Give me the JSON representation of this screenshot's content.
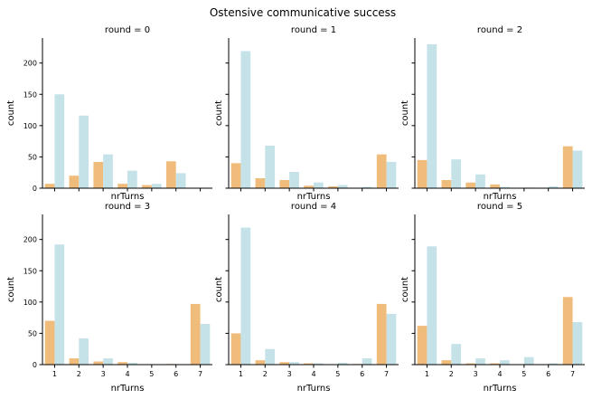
{
  "figure_title": "Ostensive communicative success",
  "colors": {
    "series_a": "#f0bc7c",
    "series_b": "#c5e2e8",
    "axis": "#000000"
  },
  "chart_data": [
    {
      "type": "bar",
      "title": "round = 0",
      "xlabel": "nrTurns",
      "ylabel": "count",
      "categories": [
        "1",
        "2",
        "3",
        "4",
        "5",
        "6",
        "7"
      ],
      "ylim": [
        0,
        240
      ],
      "yticks": [
        0,
        50,
        100,
        150,
        200
      ],
      "grid": false,
      "series": [
        {
          "values": [
            7,
            20,
            42,
            7,
            5,
            43,
            0
          ]
        },
        {
          "values": [
            150,
            116,
            54,
            28,
            7,
            24,
            0
          ]
        }
      ]
    },
    {
      "type": "bar",
      "title": "round = 1",
      "xlabel": "nrTurns",
      "ylabel": "count",
      "categories": [
        "1",
        "2",
        "3",
        "4",
        "5",
        "6",
        "7"
      ],
      "ylim": [
        0,
        240
      ],
      "yticks": [
        0,
        50,
        100,
        150,
        200
      ],
      "grid": false,
      "series": [
        {
          "values": [
            40,
            16,
            13,
            4,
            3,
            0,
            54
          ]
        },
        {
          "values": [
            219,
            68,
            26,
            9,
            5,
            2,
            42
          ]
        }
      ]
    },
    {
      "type": "bar",
      "title": "round = 2",
      "xlabel": "nrTurns",
      "ylabel": "count",
      "categories": [
        "1",
        "2",
        "3",
        "4",
        "5",
        "6",
        "7"
      ],
      "ylim": [
        0,
        240
      ],
      "yticks": [
        0,
        50,
        100,
        150,
        200
      ],
      "grid": false,
      "series": [
        {
          "values": [
            45,
            13,
            9,
            6,
            0,
            0,
            67
          ]
        },
        {
          "values": [
            230,
            46,
            22,
            2,
            1,
            3,
            60
          ]
        }
      ]
    },
    {
      "type": "bar",
      "title": "round = 3",
      "xlabel": "nrTurns",
      "ylabel": "count",
      "categories": [
        "1",
        "2",
        "3",
        "4",
        "5",
        "6",
        "7"
      ],
      "ylim": [
        0,
        240
      ],
      "yticks": [
        0,
        50,
        100,
        150,
        200
      ],
      "grid": false,
      "series": [
        {
          "values": [
            70,
            10,
            5,
            4,
            0,
            1,
            97
          ]
        },
        {
          "values": [
            192,
            42,
            10,
            3,
            0,
            0,
            65
          ]
        }
      ]
    },
    {
      "type": "bar",
      "title": "round = 4",
      "xlabel": "nrTurns",
      "ylabel": "count",
      "categories": [
        "1",
        "2",
        "3",
        "4",
        "5",
        "6",
        "7"
      ],
      "ylim": [
        0,
        240
      ],
      "yticks": [
        0,
        50,
        100,
        150,
        200
      ],
      "grid": false,
      "series": [
        {
          "values": [
            50,
            7,
            4,
            2,
            0,
            1,
            97
          ]
        },
        {
          "values": [
            219,
            25,
            4,
            2,
            3,
            10,
            81
          ]
        }
      ]
    },
    {
      "type": "bar",
      "title": "round = 5",
      "xlabel": "nrTurns",
      "ylabel": "count",
      "categories": [
        "1",
        "2",
        "3",
        "4",
        "5",
        "6",
        "7"
      ],
      "ylim": [
        0,
        240
      ],
      "yticks": [
        0,
        50,
        100,
        150,
        200
      ],
      "grid": false,
      "series": [
        {
          "values": [
            62,
            7,
            2,
            2,
            0,
            0,
            108
          ]
        },
        {
          "values": [
            189,
            33,
            10,
            7,
            12,
            2,
            68
          ]
        }
      ]
    }
  ]
}
